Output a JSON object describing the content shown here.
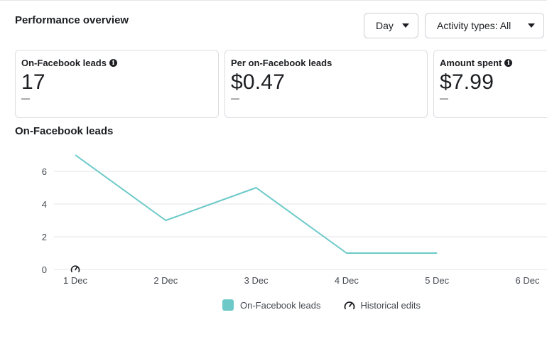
{
  "header": {
    "title": "Performance overview",
    "day_dropdown": "Day",
    "activity_dropdown": "Activity types: All"
  },
  "cards": [
    {
      "label": "On-Facebook leads",
      "value": "17",
      "dash": "—",
      "info": true
    },
    {
      "label": "Per on-Facebook leads",
      "value": "$0.47",
      "dash": "—",
      "info": false
    },
    {
      "label": "Amount spent",
      "value": "$7.99",
      "dash": "—",
      "info": true
    }
  ],
  "chart_title": "On-Facebook leads",
  "colors": {
    "series": "#6cc9c8",
    "grid": "#e4e6eb",
    "text": "#1c1e21"
  },
  "chart_data": {
    "type": "line",
    "x": [
      "1 Dec",
      "2 Dec",
      "3 Dec",
      "4 Dec",
      "5 Dec",
      "6 Dec"
    ],
    "series": [
      {
        "name": "On-Facebook leads",
        "values": [
          7,
          3,
          5,
          1,
          1,
          null
        ]
      }
    ],
    "yticks": [
      "0",
      "2",
      "4",
      "6"
    ],
    "ylim": [
      0,
      8
    ],
    "grid": true,
    "legend": "bottom-center",
    "annotations": [
      {
        "x": "1 Dec",
        "icon": "historical-edit-icon"
      }
    ]
  },
  "legend": {
    "series_label": "On-Facebook leads",
    "historical_label": "Historical edits"
  }
}
